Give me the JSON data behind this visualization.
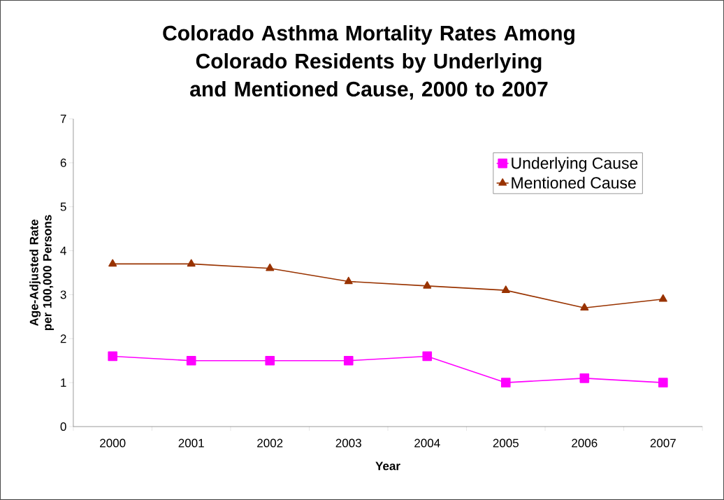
{
  "chart_data": {
    "type": "line",
    "title": "Colorado Asthma Mortality Rates Among Colorado Residents by Underlying and Mentioned Cause, 2000 to 2007",
    "xlabel": "Year",
    "ylabel": "Age-Adjusted Rate per 100,000 Persons",
    "categories": [
      "2000",
      "2001",
      "2002",
      "2003",
      "2004",
      "2005",
      "2006",
      "2007"
    ],
    "series": [
      {
        "name": "Underlying Cause",
        "color": "#ff00ff",
        "marker": "square",
        "values": [
          1.6,
          1.5,
          1.5,
          1.5,
          1.6,
          1.0,
          1.1,
          1.0
        ]
      },
      {
        "name": "Mentioned Cause",
        "color": "#993300",
        "marker": "triangle",
        "values": [
          3.7,
          3.7,
          3.6,
          3.3,
          3.2,
          3.1,
          2.7,
          2.9
        ]
      }
    ],
    "ylim": [
      0,
      7
    ],
    "yticks": [
      0,
      1,
      2,
      3,
      4,
      5,
      6,
      7
    ],
    "grid": false,
    "legend": "top right",
    "line_style": "solid"
  }
}
